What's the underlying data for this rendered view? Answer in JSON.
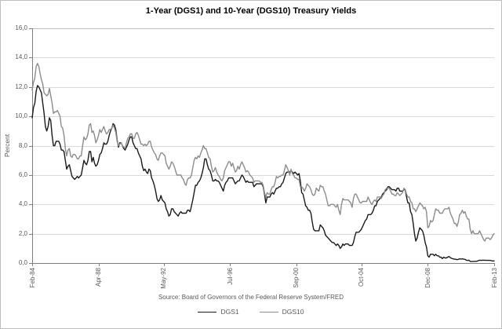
{
  "chart_data": {
    "type": "line",
    "title": "1-Year (DGS1) and 10-Year (DGS10) Treasury Yields",
    "ylabel": "Percent",
    "xlabel": "",
    "source": "Source: Board of Governors of the Federal Reserve System/FRED",
    "ylim": [
      0,
      16
    ],
    "grid": "horizontal",
    "legend_position": "bottom-center",
    "y_ticks": [
      {
        "value": 16,
        "label": "16,0"
      },
      {
        "value": 14,
        "label": "14,0"
      },
      {
        "value": 12,
        "label": "12,0"
      },
      {
        "value": 10,
        "label": "10,0"
      },
      {
        "value": 8,
        "label": "8,0"
      },
      {
        "value": 6,
        "label": "6,0"
      },
      {
        "value": 4,
        "label": "4,0"
      },
      {
        "value": 2,
        "label": "2,0"
      },
      {
        "value": 0,
        "label": "0,0"
      }
    ],
    "x_ticks": [
      {
        "month_index": 0,
        "label": "Feb-84"
      },
      {
        "month_index": 50,
        "label": "Apr-88"
      },
      {
        "month_index": 99,
        "label": "May-92"
      },
      {
        "month_index": 149,
        "label": "Jul-96"
      },
      {
        "month_index": 199,
        "label": "Sep-00"
      },
      {
        "month_index": 248,
        "label": "Oct-04"
      },
      {
        "month_index": 298,
        "label": "Dec-08"
      },
      {
        "month_index": 348,
        "label": "Feb-13"
      }
    ],
    "x_range": {
      "start": "Feb-1984",
      "end": "Feb-2013",
      "step": "monthly"
    },
    "series": [
      {
        "name": "DGS1",
        "color": "#1a1a1a",
        "values": [
          9.9,
          10.6,
          10.9,
          11.7,
          12.1,
          12.0,
          11.8,
          11.6,
          10.9,
          10.2,
          9.3,
          9.0,
          9.3,
          9.9,
          9.7,
          8.7,
          8.0,
          8.0,
          8.3,
          8.3,
          8.3,
          8.1,
          7.7,
          7.7,
          7.6,
          7.0,
          6.4,
          6.6,
          6.7,
          6.3,
          5.9,
          5.8,
          5.7,
          5.8,
          5.9,
          5.8,
          5.9,
          6.0,
          6.5,
          7.0,
          6.8,
          6.7,
          7.0,
          7.6,
          7.6,
          6.9,
          7.2,
          6.8,
          6.6,
          6.7,
          7.0,
          7.4,
          7.5,
          7.8,
          8.2,
          8.1,
          8.1,
          8.3,
          8.7,
          9.0,
          9.2,
          9.5,
          9.4,
          9.1,
          8.4,
          7.9,
          8.2,
          8.2,
          8.0,
          7.8,
          7.7,
          7.9,
          8.1,
          8.4,
          8.6,
          8.6,
          8.2,
          8.0,
          7.8,
          7.8,
          7.5,
          7.3,
          7.1,
          6.6,
          6.3,
          6.4,
          6.2,
          6.1,
          6.4,
          6.3,
          5.8,
          5.6,
          5.3,
          4.9,
          4.4,
          4.2,
          4.3,
          4.6,
          4.3,
          4.2,
          4.1,
          3.7,
          3.5,
          3.2,
          3.3,
          3.7,
          3.7,
          3.5,
          3.4,
          3.3,
          3.2,
          3.4,
          3.5,
          3.4,
          3.4,
          3.4,
          3.4,
          3.6,
          3.6,
          3.5,
          3.9,
          4.3,
          4.8,
          5.3,
          5.3,
          5.5,
          5.6,
          5.8,
          6.1,
          6.5,
          7.1,
          7.1,
          6.7,
          6.4,
          6.3,
          6.0,
          5.6,
          5.6,
          5.7,
          5.6,
          5.6,
          5.5,
          5.3,
          5.1,
          4.9,
          5.3,
          5.5,
          5.6,
          5.8,
          5.8,
          5.8,
          5.8,
          5.6,
          5.4,
          5.5,
          5.6,
          5.6,
          5.8,
          6.0,
          5.9,
          5.7,
          5.5,
          5.6,
          5.5,
          5.5,
          5.5,
          5.5,
          5.2,
          5.3,
          5.4,
          5.4,
          5.4,
          5.4,
          5.4,
          5.2,
          4.7,
          4.1,
          4.5,
          4.5,
          4.5,
          4.7,
          4.8,
          4.7,
          4.9,
          5.1,
          5.1,
          5.2,
          5.2,
          5.4,
          5.5,
          5.8,
          6.1,
          6.2,
          6.2,
          6.2,
          6.3,
          6.2,
          6.1,
          6.2,
          6.1,
          6.0,
          6.1,
          5.6,
          4.8,
          4.7,
          4.3,
          3.9,
          3.8,
          3.6,
          3.6,
          3.4,
          2.8,
          2.3,
          2.2,
          2.2,
          2.2,
          2.2,
          2.6,
          2.5,
          2.4,
          2.2,
          1.9,
          1.8,
          1.7,
          1.6,
          1.5,
          1.4,
          1.4,
          1.3,
          1.2,
          1.3,
          1.2,
          1.0,
          1.1,
          1.3,
          1.2,
          1.3,
          1.3,
          1.3,
          1.2,
          1.2,
          1.2,
          1.4,
          1.8,
          2.1,
          2.1,
          2.1,
          2.2,
          2.3,
          2.5,
          2.7,
          2.9,
          3.0,
          3.3,
          3.3,
          3.3,
          3.4,
          3.6,
          3.9,
          3.9,
          4.2,
          4.3,
          4.4,
          4.5,
          4.7,
          4.8,
          4.9,
          5.0,
          5.2,
          5.2,
          5.1,
          5.0,
          5.0,
          5.0,
          4.9,
          5.1,
          5.1,
          4.9,
          4.9,
          4.9,
          5.0,
          5.0,
          4.5,
          4.1,
          4.1,
          3.5,
          3.3,
          2.7,
          2.0,
          1.5,
          1.7,
          2.1,
          2.4,
          2.3,
          2.2,
          1.9,
          1.4,
          1.1,
          0.5,
          0.4,
          0.6,
          0.6,
          0.6,
          0.5,
          0.6,
          0.5,
          0.5,
          0.4,
          0.4,
          0.3,
          0.4,
          0.35,
          0.35,
          0.4,
          0.45,
          0.37,
          0.32,
          0.29,
          0.26,
          0.26,
          0.23,
          0.25,
          0.29,
          0.27,
          0.29,
          0.26,
          0.25,
          0.19,
          0.18,
          0.19,
          0.11,
          0.1,
          0.11,
          0.11,
          0.12,
          0.12,
          0.16,
          0.19,
          0.18,
          0.19,
          0.19,
          0.19,
          0.18,
          0.18,
          0.18,
          0.18,
          0.16,
          0.14,
          0.15
        ]
      },
      {
        "name": "DGS10",
        "color": "#8c8c8c",
        "values": [
          11.8,
          12.3,
          12.6,
          13.4,
          13.6,
          13.4,
          12.9,
          12.5,
          12.2,
          11.6,
          11.5,
          11.4,
          11.5,
          11.9,
          11.4,
          10.9,
          10.2,
          10.3,
          10.3,
          10.4,
          10.2,
          10.0,
          9.3,
          9.2,
          8.7,
          7.8,
          7.3,
          7.7,
          7.8,
          7.3,
          7.2,
          7.4,
          7.4,
          7.3,
          7.1,
          7.1,
          7.3,
          7.3,
          8.0,
          8.6,
          8.4,
          8.5,
          8.8,
          9.4,
          9.5,
          8.9,
          9.0,
          8.7,
          8.2,
          8.4,
          8.7,
          9.1,
          8.9,
          9.1,
          9.3,
          9.0,
          8.8,
          8.9,
          9.1,
          9.1,
          9.2,
          9.4,
          9.2,
          8.9,
          8.3,
          8.0,
          8.1,
          8.2,
          8.0,
          7.9,
          7.8,
          8.2,
          8.5,
          8.6,
          8.8,
          8.8,
          8.5,
          8.5,
          8.8,
          8.9,
          8.7,
          8.4,
          8.1,
          8.1,
          8.0,
          8.1,
          8.0,
          8.1,
          8.3,
          8.3,
          7.9,
          7.7,
          7.5,
          7.4,
          7.1,
          7.0,
          7.3,
          7.5,
          7.5,
          7.4,
          7.3,
          6.8,
          6.6,
          6.4,
          6.6,
          6.9,
          6.8,
          6.6,
          6.3,
          6.0,
          6.0,
          6.0,
          6.0,
          5.8,
          5.7,
          5.4,
          5.3,
          5.7,
          5.8,
          5.8,
          6.0,
          6.5,
          7.0,
          7.2,
          7.1,
          7.3,
          7.2,
          7.5,
          7.7,
          8.0,
          7.8,
          7.8,
          7.5,
          7.2,
          7.1,
          6.6,
          6.2,
          6.3,
          6.5,
          6.2,
          6.0,
          5.9,
          5.7,
          5.6,
          5.8,
          6.3,
          6.5,
          6.7,
          6.9,
          6.9,
          6.6,
          6.8,
          6.5,
          6.2,
          6.3,
          6.6,
          6.4,
          6.7,
          6.9,
          6.7,
          6.5,
          6.2,
          6.3,
          6.2,
          6.0,
          5.9,
          5.8,
          5.5,
          5.6,
          5.6,
          5.6,
          5.6,
          5.5,
          5.5,
          5.3,
          4.8,
          4.5,
          4.8,
          4.7,
          4.7,
          5.0,
          5.2,
          5.2,
          5.5,
          5.9,
          5.8,
          5.9,
          5.9,
          6.0,
          6.0,
          6.3,
          6.7,
          6.5,
          6.3,
          6.0,
          6.4,
          6.1,
          6.0,
          5.8,
          5.8,
          5.7,
          5.7,
          5.2,
          5.2,
          5.1,
          4.9,
          5.1,
          5.4,
          5.3,
          5.2,
          5.0,
          4.7,
          4.6,
          4.7,
          5.1,
          5.0,
          4.9,
          5.3,
          5.2,
          5.2,
          4.9,
          4.7,
          4.3,
          3.9,
          3.9,
          4.0,
          4.0,
          4.0,
          3.9,
          3.8,
          4.0,
          3.6,
          3.3,
          4.0,
          4.4,
          4.3,
          4.3,
          4.3,
          4.3,
          4.2,
          4.1,
          3.8,
          4.4,
          4.7,
          4.7,
          4.5,
          4.3,
          4.1,
          4.1,
          4.2,
          4.2,
          4.2,
          4.2,
          4.5,
          4.3,
          4.1,
          4.0,
          4.2,
          4.3,
          4.2,
          4.5,
          4.5,
          4.5,
          4.4,
          4.6,
          4.7,
          5.0,
          5.1,
          5.1,
          5.1,
          4.9,
          4.7,
          4.7,
          4.6,
          4.6,
          4.8,
          4.7,
          4.6,
          4.7,
          4.8,
          5.1,
          5.0,
          4.7,
          4.5,
          4.5,
          4.2,
          4.1,
          3.7,
          3.7,
          3.5,
          3.7,
          3.9,
          4.1,
          4.0,
          3.9,
          3.7,
          3.8,
          3.5,
          2.4,
          2.5,
          2.9,
          2.8,
          2.9,
          3.3,
          3.7,
          3.6,
          3.6,
          3.4,
          3.4,
          3.4,
          3.6,
          3.7,
          3.7,
          3.7,
          3.8,
          3.4,
          3.2,
          3.0,
          2.7,
          2.7,
          2.5,
          2.8,
          3.3,
          3.4,
          3.6,
          3.4,
          3.5,
          3.2,
          3.0,
          3.0,
          2.3,
          2.0,
          2.2,
          2.0,
          2.0,
          2.0,
          2.0,
          2.2,
          2.0,
          1.8,
          1.6,
          1.5,
          1.7,
          1.7,
          1.7,
          1.6,
          1.7,
          1.9,
          2.0
        ]
      }
    ],
    "colors": {
      "gridline": "#d9d9d9",
      "top_gridline": "#bfbfbf",
      "axis": "#7f7f7f",
      "text": "#595959"
    }
  }
}
